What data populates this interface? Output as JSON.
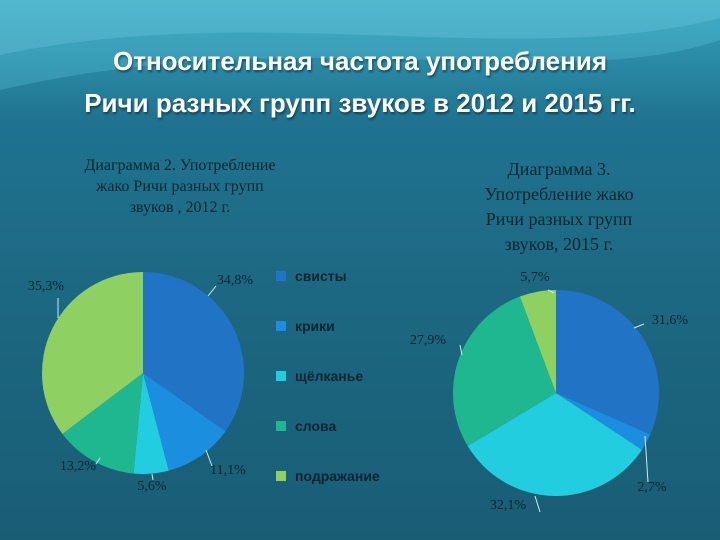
{
  "title": {
    "line1": "Относительная частота употребления",
    "line2": "Ричи разных групп звуков в 2012 и 2015 гг."
  },
  "colors": {
    "свисты": "#2173c6",
    "крики": "#1c8ee0",
    "щёлканье": "#22cde0",
    "слова": "#1fb790",
    "подражание": "#8fd063"
  },
  "legend": [
    "свисты",
    "крики",
    "щёлканье",
    "слова",
    "подражание"
  ],
  "chart_data": [
    {
      "type": "pie",
      "title_lines": [
        "Диаграмма 2. Употребление",
        "жако Ричи разных групп",
        "звуков , 2012 г."
      ],
      "categories": [
        "свисты",
        "крики",
        "щёлканье",
        "слова",
        "подражание"
      ],
      "values": [
        34.8,
        11.1,
        5.6,
        13.2,
        35.3
      ],
      "labels": [
        "34,8%",
        "11,1%",
        "5,6%",
        "13,2%",
        "35,3%"
      ]
    },
    {
      "type": "pie",
      "title_lines": [
        "Диаграмма 3.",
        "Употребление жако",
        "Ричи разных групп",
        "звуков, 2015 г."
      ],
      "categories": [
        "свисты",
        "крики",
        "щёлканье",
        "слова",
        "подражание"
      ],
      "values": [
        31.6,
        2.7,
        32.1,
        27.9,
        5.7
      ],
      "labels": [
        "31,6%",
        "2,7%",
        "32,1%",
        "27,9%",
        "5,7%"
      ]
    }
  ]
}
